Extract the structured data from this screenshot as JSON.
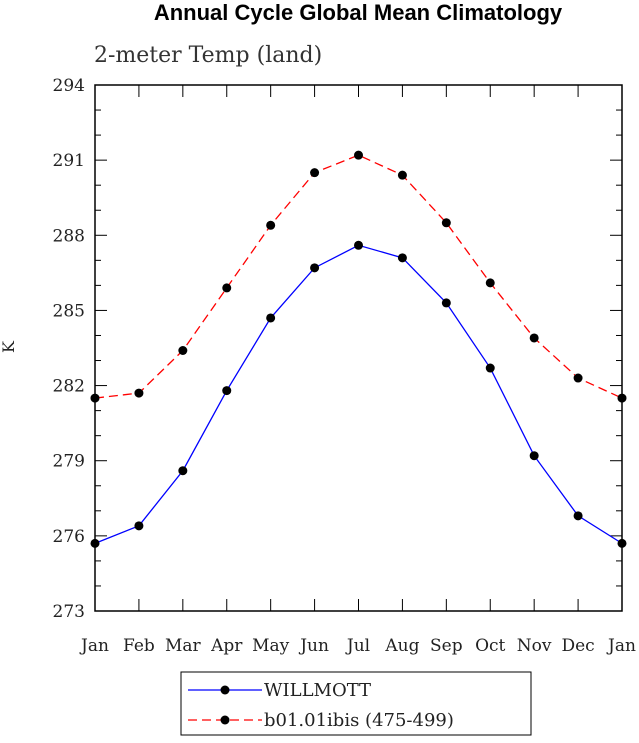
{
  "chart_data": {
    "type": "line",
    "title": "Annual Cycle Global Mean Climatology",
    "subtitle": "2-meter Temp (land)",
    "xlabel": "",
    "ylabel": "K",
    "categories": [
      "Jan",
      "Feb",
      "Mar",
      "Apr",
      "May",
      "Jun",
      "Jul",
      "Aug",
      "Sep",
      "Oct",
      "Nov",
      "Dec",
      "Jan"
    ],
    "yticks": [
      "273",
      "276",
      "279",
      "282",
      "285",
      "288",
      "291",
      "294"
    ],
    "ylim": [
      273,
      294
    ],
    "grid": false,
    "legend_position": "bottom",
    "series": [
      {
        "name": "WILLMOTT",
        "color": "#0000ff",
        "dash": "solid",
        "marker": "filled-circle",
        "values": [
          275.7,
          276.4,
          278.6,
          281.8,
          284.7,
          286.7,
          287.6,
          287.1,
          285.3,
          282.7,
          279.2,
          276.8,
          275.7
        ]
      },
      {
        "name": "b01.01ibis (475-499)",
        "color": "#ff0000",
        "dash": "dashed",
        "marker": "filled-circle",
        "values": [
          281.5,
          281.7,
          283.4,
          285.9,
          288.4,
          290.5,
          291.2,
          290.4,
          288.5,
          286.1,
          283.9,
          282.3,
          281.5
        ]
      }
    ]
  }
}
